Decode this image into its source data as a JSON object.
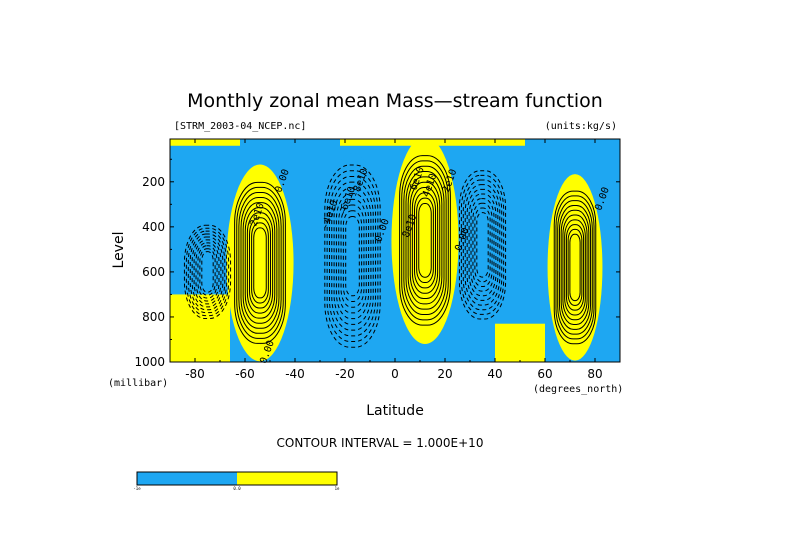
{
  "chart_data": {
    "type": "contour",
    "title": "Monthly zonal mean Mass—stream function",
    "dataset": "[STRM_2003-04_NCEP.nc]",
    "units": "(units:kg/s)",
    "xlabel": "Latitude",
    "ylabel": "Level",
    "x_units": "(degrees_north)",
    "y_units": "(millibar)",
    "xlim": [
      -90,
      90
    ],
    "ylim": [
      1000,
      10
    ],
    "y_reversed": true,
    "x_ticks": [
      "-80",
      "-60",
      "-40",
      "-20",
      "0",
      "20",
      "40",
      "60",
      "80"
    ],
    "x_tick_values": [
      -80,
      -60,
      -40,
      -20,
      0,
      20,
      40,
      60,
      80
    ],
    "y_ticks": [
      "200",
      "400",
      "600",
      "800",
      "1000"
    ],
    "y_tick_values": [
      200,
      400,
      600,
      800,
      1000
    ],
    "contour_interval_text": "CONTOUR INTERVAL = 1.000E+10",
    "contour_interval": 10000000000.0,
    "fill_colors": {
      "negative": "#1ea7f2",
      "positive": "#ffff00"
    },
    "colorbar": {
      "labels": [
        "-1e",
        "0.0",
        "1e"
      ],
      "colors": [
        "#1ea7f2",
        "#ffff00"
      ]
    },
    "cells": [
      {
        "sign": -1,
        "lat_center": -75,
        "lat_half_width": 10,
        "p_center": 600,
        "p_half": 220,
        "peak": "1e10"
      },
      {
        "sign": 1,
        "lat_center": -54,
        "lat_half_width": 11,
        "p_center": 560,
        "p_half": 380,
        "peak": "2e10"
      },
      {
        "sign": -1,
        "lat_center": -17,
        "lat_half_width": 12,
        "p_center": 530,
        "p_half": 430,
        "peak": "8e10"
      },
      {
        "sign": 1,
        "lat_center": 12,
        "lat_half_width": 11,
        "p_center": 460,
        "p_half": 400,
        "peak": "10e10"
      },
      {
        "sign": -1,
        "lat_center": 35,
        "lat_half_width": 10,
        "p_center": 480,
        "p_half": 350,
        "peak": "3e10"
      },
      {
        "sign": 1,
        "lat_center": 72,
        "lat_half_width": 9,
        "p_center": 580,
        "p_half": 360,
        "peak": "1e10"
      }
    ],
    "contour_labels": [
      {
        "text": "0.00",
        "lat": -44,
        "p": 200
      },
      {
        "text": "2e10",
        "lat": -54,
        "p": 350
      },
      {
        "text": "0.00",
        "lat": -50,
        "p": 960
      },
      {
        "text": "-4e10",
        "lat": -25,
        "p": 350
      },
      {
        "text": "-6e10",
        "lat": -18,
        "p": 290
      },
      {
        "text": "-8e10",
        "lat": -13,
        "p": 210
      },
      {
        "text": "0.00",
        "lat": -4,
        "p": 420
      },
      {
        "text": "6e10",
        "lat": 10,
        "p": 190
      },
      {
        "text": "4e10",
        "lat": 15,
        "p": 220
      },
      {
        "text": "2e10",
        "lat": 23,
        "p": 200
      },
      {
        "text": "8e10",
        "lat": 7,
        "p": 400
      },
      {
        "text": "0.00",
        "lat": 28,
        "p": 460
      },
      {
        "text": "0.00",
        "lat": 84,
        "p": 280
      }
    ]
  }
}
